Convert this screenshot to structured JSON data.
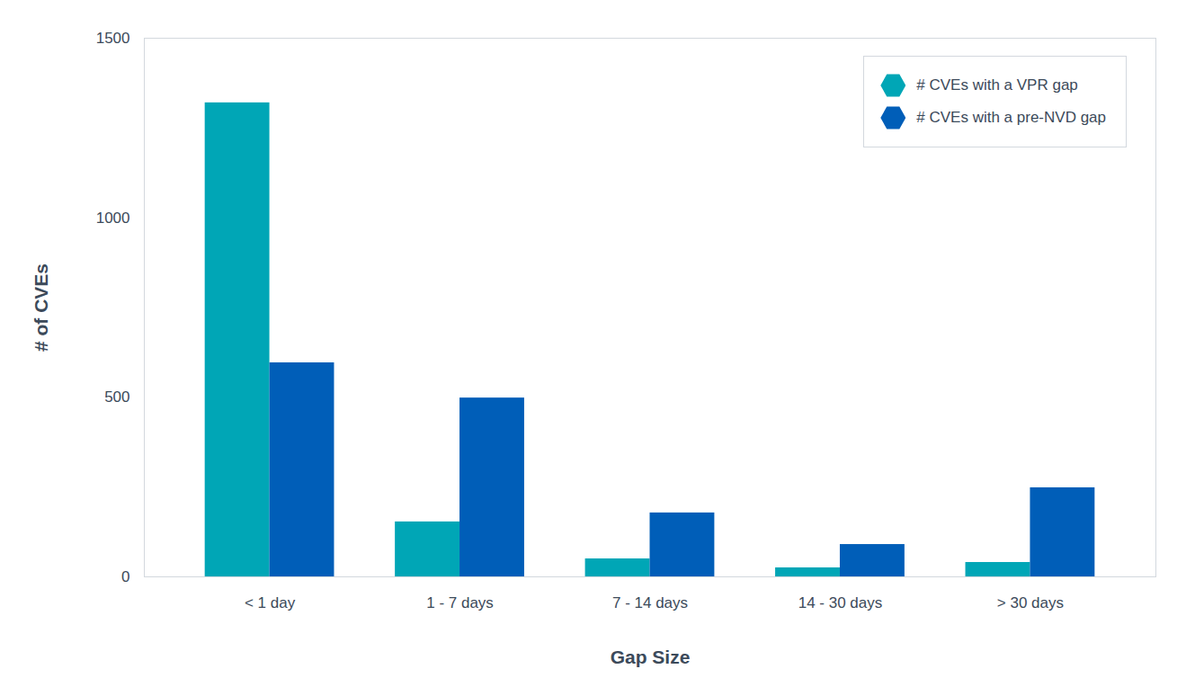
{
  "chart_data": {
    "type": "bar",
    "categories": [
      "< 1 day",
      "1 - 7 days",
      "7 - 14 days",
      "14 - 30 days",
      "> 30 days"
    ],
    "series": [
      {
        "name": "# CVEs with a VPR gap",
        "color": "#00a6b6",
        "values": [
          1320,
          153,
          50,
          25,
          40
        ]
      },
      {
        "name": "# CVEs with a pre-NVD gap",
        "color": "#005eb8",
        "values": [
          596,
          498,
          178,
          90,
          248
        ]
      }
    ],
    "x_label": "Gap Size",
    "y_label": "# of CVEs",
    "ylim": [
      0,
      1500
    ],
    "yticks": [
      0,
      500,
      1000,
      1500
    ],
    "grid": false,
    "legend": "top-right"
  }
}
